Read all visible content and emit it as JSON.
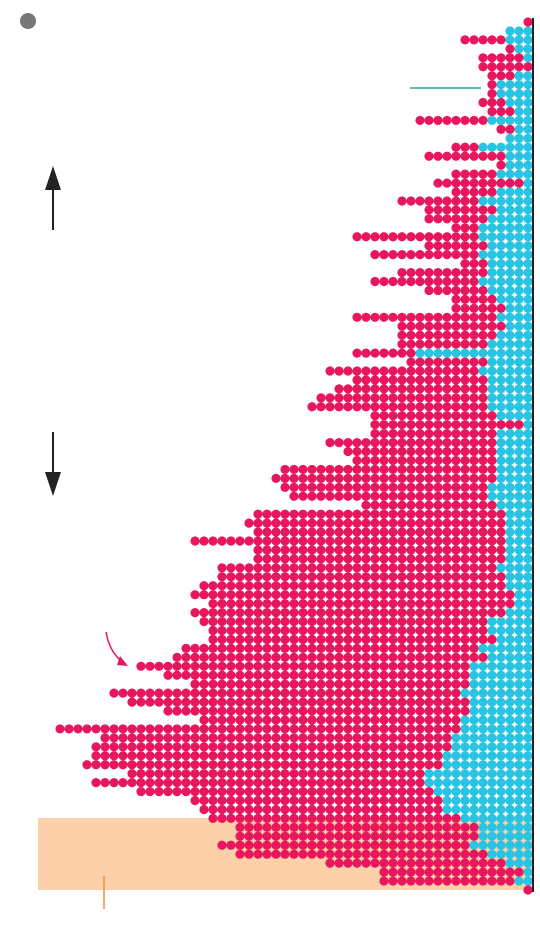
{
  "chart_data": {
    "type": "dot",
    "series": [
      {
        "color": "#29c4e3",
        "values": [
          0,
          3,
          3,
          2,
          1,
          0,
          2,
          4,
          4,
          3,
          2,
          5,
          2,
          3,
          6,
          3,
          3,
          4,
          1,
          4,
          6,
          4,
          5,
          6,
          6,
          5,
          6,
          5,
          5,
          6,
          5,
          4,
          3,
          4,
          3,
          4,
          5,
          13,
          5,
          6,
          5,
          5,
          5,
          5,
          4,
          1,
          4,
          4,
          4,
          4,
          4,
          4,
          5,
          5,
          4,
          3,
          3,
          3,
          3,
          3,
          3,
          4,
          3,
          3,
          2,
          2,
          3,
          5,
          5,
          4,
          6,
          5,
          7,
          7,
          7,
          8,
          7,
          7,
          8,
          8,
          9,
          9,
          10,
          10,
          12,
          12,
          11,
          10,
          10,
          8,
          6,
          6,
          7,
          5,
          3,
          1,
          2,
          0
        ]
      },
      {
        "color": "#e8175d",
        "values": [
          1,
          0,
          5,
          1,
          5,
          6,
          3,
          1,
          1,
          3,
          3,
          8,
          2,
          0,
          3,
          9,
          1,
          5,
          10,
          5,
          9,
          8,
          7,
          3,
          14,
          7,
          12,
          3,
          10,
          12,
          7,
          5,
          6,
          16,
          12,
          11,
          10,
          7,
          9,
          17,
          15,
          17,
          19,
          20,
          14,
          17,
          14,
          19,
          17,
          16,
          24,
          25,
          23,
          22,
          15,
          28,
          29,
          28,
          35,
          28,
          28,
          31,
          32,
          34,
          36,
          34,
          35,
          32,
          31,
          32,
          33,
          35,
          37,
          34,
          31,
          39,
          38,
          34,
          29,
          45,
          39,
          40,
          39,
          40,
          33,
          37,
          33,
          28,
          27,
          28,
          27,
          27,
          28,
          28,
          20,
          16,
          15,
          1
        ]
      }
    ]
  }
}
